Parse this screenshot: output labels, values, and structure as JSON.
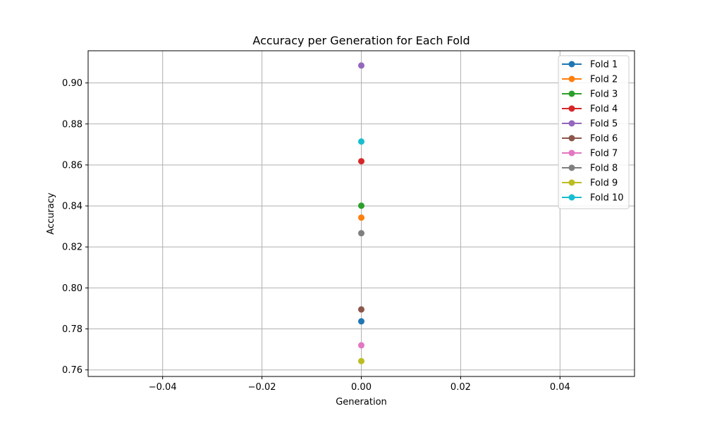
{
  "chart_data": {
    "type": "scatter",
    "title": "Accuracy per Generation for Each Fold",
    "xlabel": "Generation",
    "ylabel": "Accuracy",
    "xlim": [
      -0.055,
      0.055
    ],
    "ylim": [
      0.7568,
      0.9157
    ],
    "x_ticks": [
      -0.04,
      -0.02,
      0.0,
      0.02,
      0.04
    ],
    "x_tick_labels": [
      "−0.04",
      "−0.02",
      "0.00",
      "0.02",
      "0.04"
    ],
    "y_ticks": [
      0.76,
      0.78,
      0.8,
      0.82,
      0.84,
      0.86,
      0.88,
      0.9
    ],
    "y_tick_labels": [
      "0.76",
      "0.78",
      "0.80",
      "0.82",
      "0.84",
      "0.86",
      "0.88",
      "0.90"
    ],
    "grid": true,
    "legend_position": "top-right",
    "series": [
      {
        "name": "Fold 1",
        "color": "#1f77b4",
        "x": [
          0
        ],
        "y": [
          0.7837
        ]
      },
      {
        "name": "Fold 2",
        "color": "#ff7f0e",
        "x": [
          0
        ],
        "y": [
          0.8343
        ]
      },
      {
        "name": "Fold 3",
        "color": "#2ca02c",
        "x": [
          0
        ],
        "y": [
          0.8401
        ]
      },
      {
        "name": "Fold 4",
        "color": "#d62728",
        "x": [
          0
        ],
        "y": [
          0.8618
        ]
      },
      {
        "name": "Fold 5",
        "color": "#9467bd",
        "x": [
          0
        ],
        "y": [
          0.9085
        ]
      },
      {
        "name": "Fold 6",
        "color": "#8c564b",
        "x": [
          0
        ],
        "y": [
          0.7895
        ]
      },
      {
        "name": "Fold 7",
        "color": "#e377c2",
        "x": [
          0
        ],
        "y": [
          0.772
        ]
      },
      {
        "name": "Fold 8",
        "color": "#7f7f7f",
        "x": [
          0
        ],
        "y": [
          0.8267
        ]
      },
      {
        "name": "Fold 9",
        "color": "#bcbd22",
        "x": [
          0
        ],
        "y": [
          0.7643
        ]
      },
      {
        "name": "Fold 10",
        "color": "#17becf",
        "x": [
          0
        ],
        "y": [
          0.8714
        ]
      }
    ]
  }
}
